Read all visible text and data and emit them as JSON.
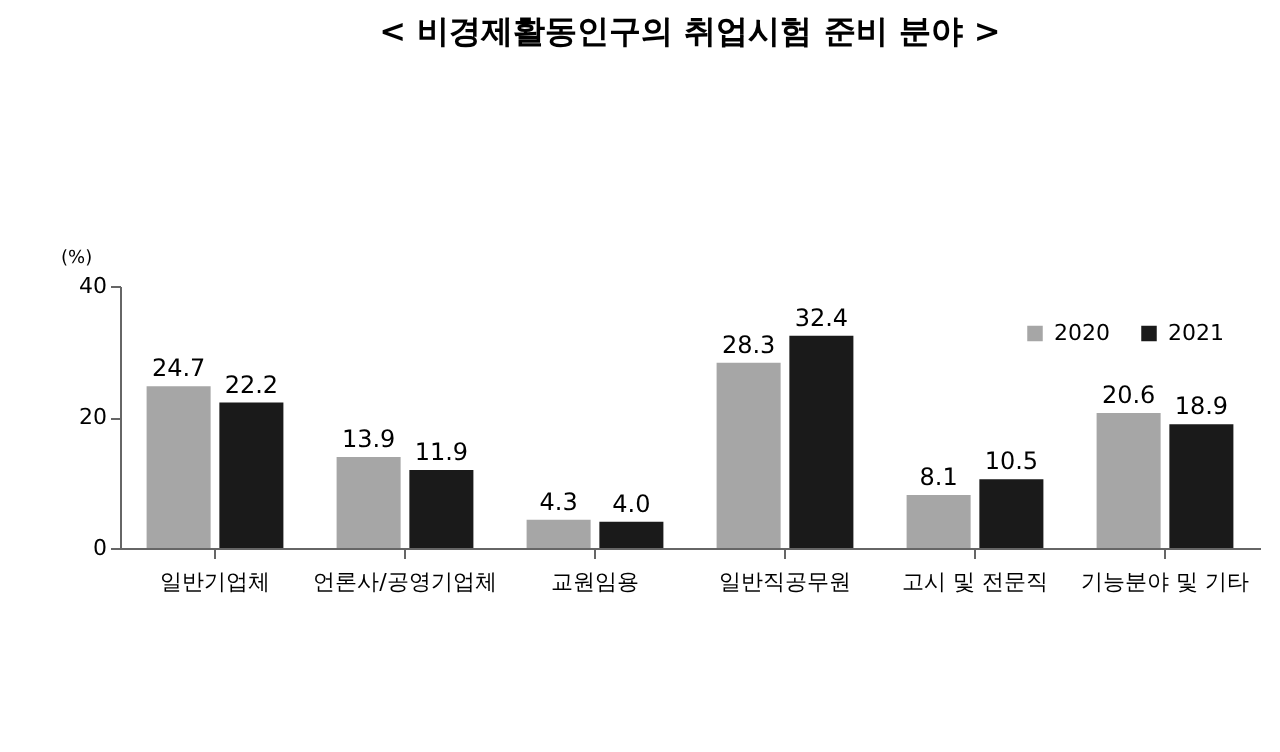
{
  "chart_data": {
    "type": "bar",
    "title": "< 비경제활동인구의 취업시험 준비 분야 >",
    "ylabel": "(%)",
    "categories": [
      "일반기업체",
      "언론사/공영기업체",
      "교원임용",
      "일반직공무원",
      "고시 및 전문직",
      "기능분야 및 기타"
    ],
    "series": [
      {
        "name": "2020",
        "color": "#a6a6a6",
        "values": [
          24.7,
          13.9,
          4.3,
          28.3,
          8.1,
          20.6
        ],
        "value_labels": [
          "24.7",
          "13.9",
          "4.3",
          "28.3",
          "8.1",
          "20.6"
        ]
      },
      {
        "name": "2021",
        "color": "#1a1a1a",
        "values": [
          22.2,
          11.9,
          4.0,
          32.4,
          10.5,
          18.9
        ],
        "value_labels": [
          "22.2",
          "11.9",
          "4.0",
          "32.4",
          "10.5",
          "18.9"
        ]
      }
    ],
    "ylim": [
      0,
      40
    ],
    "yticks": [
      0,
      20,
      40
    ],
    "grid": false,
    "legend": "top right"
  }
}
